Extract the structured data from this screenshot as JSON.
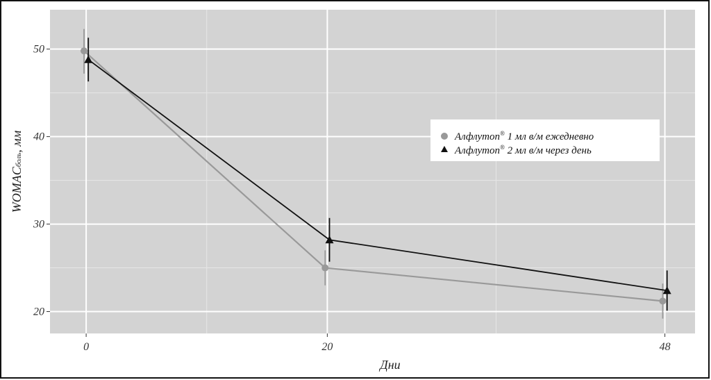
{
  "chart_data": {
    "type": "line",
    "title": "",
    "xlabel": "Дни",
    "ylabel_main": "WOMAC",
    "ylabel_sub": "боль",
    "ylabel_unit": ", мм",
    "x_ticks": [
      "0",
      "20",
      "48"
    ],
    "y_ticks": [
      "20",
      "30",
      "40",
      "50"
    ],
    "xlim": [
      -3,
      50.5
    ],
    "ylim": [
      17.5,
      54.5
    ],
    "grid": true,
    "legend_position": "right",
    "legend_registered": "®",
    "series": [
      {
        "name": "Алфлутоп",
        "name_rest": " 1 мл в/м ежедневно",
        "marker": "circle",
        "color": "#999999",
        "x": [
          0,
          20,
          48
        ],
        "y": [
          49.8,
          25.0,
          21.2
        ],
        "err_low": [
          47.2,
          23.0,
          19.2
        ],
        "err_high": [
          52.3,
          27.0,
          23.2
        ]
      },
      {
        "name": "Алфлутоп",
        "name_rest": " 2 мл в/м через день",
        "marker": "triangle",
        "color": "#111111",
        "x": [
          0,
          20,
          48
        ],
        "y": [
          48.8,
          28.2,
          22.4
        ],
        "err_low": [
          46.3,
          25.7,
          20.1
        ],
        "err_high": [
          51.3,
          30.7,
          24.7
        ]
      }
    ]
  }
}
